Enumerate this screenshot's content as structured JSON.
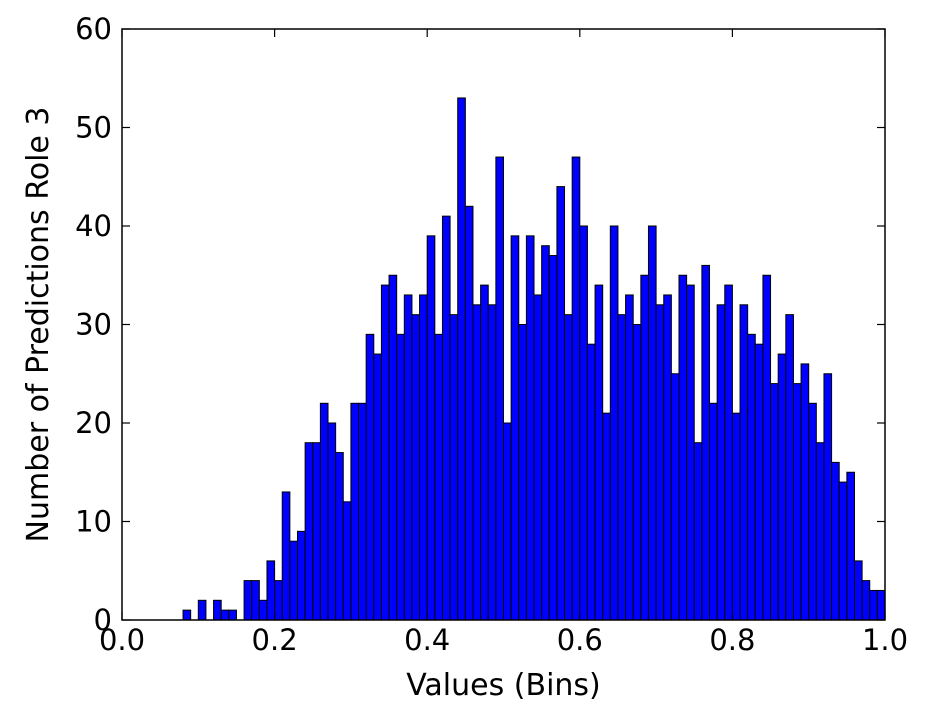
{
  "chart_data": {
    "type": "bar",
    "title": "",
    "xlabel": "Values (Bins)",
    "ylabel": "Number of Predictions Role 3",
    "xlim": [
      0.0,
      1.0
    ],
    "ylim": [
      0,
      60
    ],
    "x_ticks": [
      "0.0",
      "0.2",
      "0.4",
      "0.6",
      "0.8",
      "1.0"
    ],
    "y_ticks": [
      "0",
      "10",
      "20",
      "30",
      "40",
      "50",
      "60"
    ],
    "grid": false,
    "bar_color": "#0000ff",
    "bin_width": 0.01,
    "bin_starts": [
      0.0,
      0.01,
      0.02,
      0.03,
      0.04,
      0.05,
      0.06,
      0.07,
      0.08,
      0.09,
      0.1,
      0.11,
      0.12,
      0.13,
      0.14,
      0.15,
      0.16,
      0.17,
      0.18,
      0.19,
      0.2,
      0.21,
      0.22,
      0.23,
      0.24,
      0.25,
      0.26,
      0.27,
      0.28,
      0.29,
      0.3,
      0.31,
      0.32,
      0.33,
      0.34,
      0.35,
      0.36,
      0.37,
      0.38,
      0.39,
      0.4,
      0.41,
      0.42,
      0.43,
      0.44,
      0.45,
      0.46,
      0.47,
      0.48,
      0.49,
      0.5,
      0.51,
      0.52,
      0.53,
      0.54,
      0.55,
      0.56,
      0.57,
      0.58,
      0.59,
      0.6,
      0.61,
      0.62,
      0.63,
      0.64,
      0.65,
      0.66,
      0.67,
      0.68,
      0.69,
      0.7,
      0.71,
      0.72,
      0.73,
      0.74,
      0.75,
      0.76,
      0.77,
      0.78,
      0.79,
      0.8,
      0.81,
      0.82,
      0.83,
      0.84,
      0.85,
      0.86,
      0.87,
      0.88,
      0.89,
      0.9,
      0.91,
      0.92,
      0.93,
      0.94,
      0.95,
      0.96,
      0.97,
      0.98,
      0.99
    ],
    "values": [
      0,
      0,
      0,
      0,
      0,
      0,
      0,
      0,
      1,
      0,
      2,
      0,
      2,
      1,
      1,
      0,
      4,
      4,
      2,
      6,
      4,
      13,
      8,
      9,
      18,
      18,
      22,
      20,
      17,
      12,
      22,
      22,
      29,
      27,
      34,
      35,
      29,
      33,
      31,
      33,
      39,
      29,
      41,
      31,
      53,
      42,
      32,
      34,
      32,
      47,
      20,
      39,
      30,
      39,
      33,
      38,
      37,
      44,
      31,
      47,
      40,
      28,
      34,
      21,
      40,
      31,
      33,
      30,
      35,
      40,
      32,
      33,
      25,
      35,
      34,
      18,
      36,
      22,
      32,
      34,
      21,
      32,
      29,
      28,
      35,
      24,
      27,
      31,
      24,
      26,
      22,
      18,
      25,
      16,
      14,
      15,
      6,
      4,
      3,
      3
    ]
  }
}
